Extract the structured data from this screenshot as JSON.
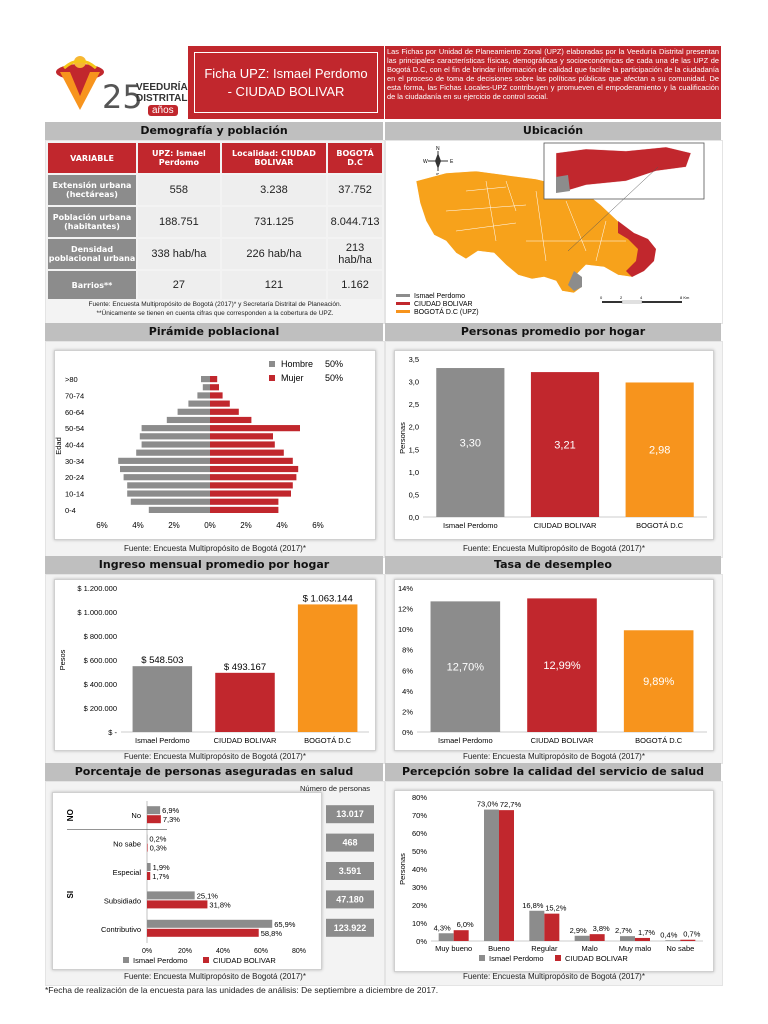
{
  "header": {
    "logo_number": "25",
    "logo_text_line1": "VEEDURÍA",
    "logo_text_line2": "DISTRITAL",
    "logo_text_line3": "años",
    "title_line1": "Ficha UPZ: Ismael Perdomo",
    "title_line2": "- CIUDAD BOLIVAR",
    "intro": "Las Fichas por Unidad de Planeamiento Zonal (UPZ) elaboradas por la Veeduría Distrital presentan las principales características físicas, demográficas y socioeconómicas de cada una de las UPZ de Bogotá D.C, con el fin de brindar información de calidad que facilite la participación de la ciudadanía en el proceso de toma de decisiones sobre las políticas públicas que afectan a su comunidad. De esta forma, las Fichas Locales-UPZ contribuyen y promueven el empoderamiento y la cualificación de la ciudadanía en su ejercicio de control social.",
    "colors": {
      "red": "#c1272d",
      "grey": "#8c8c8c",
      "orange": "#f7941d"
    }
  },
  "demografia": {
    "title": "Demografía y población",
    "col_variable": "VARIABLE",
    "col_upz": "UPZ: Ismael Perdomo",
    "col_localidad": "Localidad: CIUDAD BOLIVAR",
    "col_bogota": "BOGOTÁ D.C",
    "rows": [
      {
        "label": "Extensión urbana (hectáreas)",
        "upz": "558",
        "localidad": "3.238",
        "bogota": "37.752"
      },
      {
        "label": "Población urbana (habitantes)",
        "upz": "188.751",
        "localidad": "731.125",
        "bogota": "8.044.713"
      },
      {
        "label": "Densidad poblacional urbana",
        "upz": "338 hab/ha",
        "localidad": "226 hab/ha",
        "bogota": "213 hab/ha"
      },
      {
        "label": "Barrios**",
        "upz": "27",
        "localidad": "121",
        "bogota": "1.162"
      }
    ],
    "source_line1": "Fuente: Encuesta Multipropósito de Bogotá (2017)* y Secretaría Distrital de Planeación.",
    "source_line2": "**Únicamente se tienen en cuenta cifras que corresponden a la cobertura de UPZ."
  },
  "ubicacion": {
    "title": "Ubicación",
    "legend": [
      "Ismael Perdomo",
      "CIUDAD BOLIVAR",
      "BOGOTÁ D.C (UPZ)"
    ],
    "scale_labels": [
      "0",
      "2",
      "4",
      "8 Km"
    ],
    "compass": {
      "n": "N",
      "w": "W",
      "e": "E",
      "s": "S"
    }
  },
  "piramide": {
    "title": "Pirámide poblacional",
    "legend": [
      {
        "label": "Hombre",
        "value": "50%"
      },
      {
        "label": "Mujer",
        "value": "50%"
      }
    ],
    "ylabel": "Edad",
    "source": "Fuente: Encuesta Multipropósito de Bogotá (2017)*"
  },
  "hogar": {
    "title": "Personas promedio por hogar",
    "source": "Fuente: Encuesta Multipropósito de Bogotá (2017)*"
  },
  "ingreso": {
    "title": "Ingreso mensual promedio por hogar",
    "source": "Fuente: Encuesta Multipropósito de Bogotá (2017)*"
  },
  "desempleo": {
    "title": "Tasa de desempleo",
    "source": "Fuente: Encuesta Multipropósito de Bogotá (2017)*"
  },
  "salud": {
    "title": "Porcentaje de personas aseguradas en salud",
    "numero_header": "Número de personas",
    "source": "Fuente: Encuesta Multipropósito de Bogotá (2017)*"
  },
  "percepcion": {
    "title": "Percepción sobre la calidad del servicio de salud",
    "source": "Fuente: Encuesta Multipropósito de Bogotá (2017)*"
  },
  "footnote": "*Fecha de realización de la encuesta para las unidades de análisis: De septiembre a diciembre de 2017.",
  "chart_data": [
    {
      "id": "piramide",
      "type": "bar",
      "orientation": "horizontal",
      "title": "Pirámide poblacional",
      "ylabel": "Edad",
      "categories": [
        "0-4",
        "5-9",
        "10-14",
        "15-19",
        "20-24",
        "25-29",
        "30-34",
        "35-39",
        "40-44",
        "45-49",
        "50-54",
        "55-59",
        "60-64",
        "65-69",
        "70-74",
        "75-79",
        ">80"
      ],
      "category_tick_labels": [
        "0-4",
        "10-14",
        "20-24",
        "30-34",
        "40-44",
        "50-54",
        "60-64",
        "70-74",
        ">80"
      ],
      "series": [
        {
          "name": "Hombre",
          "values": [
            3.4,
            4.4,
            4.6,
            4.6,
            4.8,
            5.0,
            5.1,
            4.1,
            3.8,
            3.9,
            3.8,
            2.4,
            1.8,
            1.2,
            0.7,
            0.4,
            0.5
          ]
        },
        {
          "name": "Mujer",
          "values": [
            3.8,
            3.8,
            4.5,
            4.6,
            4.8,
            4.9,
            4.6,
            4.1,
            3.6,
            3.5,
            5.0,
            2.3,
            1.6,
            1.1,
            0.7,
            0.5,
            0.4
          ]
        }
      ],
      "xticks": [
        "6%",
        "4%",
        "2%",
        "0%",
        "2%",
        "4%",
        "6%"
      ],
      "xlim": [
        -6,
        6
      ]
    },
    {
      "id": "hogar",
      "type": "bar",
      "title": "Personas promedio por hogar",
      "ylabel": "Personas",
      "categories": [
        "Ismael Perdomo",
        "CIUDAD BOLIVAR",
        "BOGOTÁ D.C"
      ],
      "values": [
        3.3,
        3.21,
        2.98
      ],
      "labels": [
        "3,30",
        "3,21",
        "2,98"
      ],
      "ylim": [
        0,
        3.5
      ],
      "yticks": [
        "0,0",
        "0,5",
        "1,0",
        "1,5",
        "2,0",
        "2,5",
        "3,0",
        "3,5"
      ]
    },
    {
      "id": "ingreso",
      "type": "bar",
      "title": "Ingreso mensual promedio por hogar",
      "ylabel": "Pesos",
      "categories": [
        "Ismael Perdomo",
        "CIUDAD BOLIVAR",
        "BOGOTÁ D.C"
      ],
      "values": [
        548503,
        493167,
        1063144
      ],
      "labels": [
        "$ 548.503",
        "$ 493.167",
        "$ 1.063.144"
      ],
      "ylim": [
        0,
        1200000
      ],
      "yticks": [
        "$ -",
        "$ 200.000",
        "$ 400.000",
        "$ 600.000",
        "$ 800.000",
        "$ 1.000.000",
        "$ 1.200.000"
      ]
    },
    {
      "id": "desempleo",
      "type": "bar",
      "title": "Tasa de desempleo",
      "categories": [
        "Ismael Perdomo",
        "CIUDAD BOLIVAR",
        "BOGOTÁ D.C"
      ],
      "values": [
        12.7,
        12.99,
        9.89
      ],
      "labels": [
        "12,70%",
        "12,99%",
        "9,89%"
      ],
      "ylim": [
        0,
        14
      ],
      "yticks": [
        "0%",
        "2%",
        "4%",
        "6%",
        "8%",
        "10%",
        "12%",
        "14%"
      ]
    },
    {
      "id": "salud",
      "type": "bar",
      "orientation": "horizontal",
      "title": "Porcentaje de personas aseguradas en salud",
      "categories": [
        "No",
        "No sabe",
        "Especial",
        "Subsidiado",
        "Contributivo"
      ],
      "groups": {
        "NO": [
          "No"
        ],
        "SI": [
          "Especial",
          "Subsidiado",
          "Contributivo"
        ]
      },
      "series": [
        {
          "name": "Ismael Perdomo",
          "values": [
            6.9,
            0.2,
            1.9,
            25.1,
            65.9
          ],
          "labels": [
            "6,9%",
            "0,2%",
            "1,9%",
            "25,1%",
            "65,9%"
          ]
        },
        {
          "name": "CIUDAD BOLIVAR",
          "values": [
            7.3,
            0.3,
            1.7,
            31.8,
            58.8
          ],
          "labels": [
            "7,3%",
            "0,3%",
            "1,7%",
            "31,8%",
            "58,8%"
          ]
        }
      ],
      "numero_personas": [
        "13.017",
        "468",
        "3.591",
        "47.180",
        "123.922"
      ],
      "xlim": [
        0,
        100
      ],
      "xticks": [
        "0%",
        "20%",
        "40%",
        "60%",
        "80%",
        "100%"
      ]
    },
    {
      "id": "percepcion",
      "type": "bar",
      "title": "Percepción sobre la calidad del servicio de salud",
      "ylabel": "Personas",
      "categories": [
        "Muy bueno",
        "Bueno",
        "Regular",
        "Malo",
        "Muy malo",
        "No sabe"
      ],
      "series": [
        {
          "name": "Ismael Perdomo",
          "values": [
            4.3,
            73.0,
            16.8,
            2.9,
            2.7,
            0.4
          ],
          "labels": [
            "4,3%",
            "73,0%",
            "16,8%",
            "2,9%",
            "2,7%",
            "0,4%"
          ]
        },
        {
          "name": "CIUDAD BOLIVAR",
          "values": [
            6.0,
            72.7,
            15.2,
            3.8,
            1.7,
            0.7
          ],
          "labels": [
            "6,0%",
            "72,7%",
            "15,2%",
            "3,8%",
            "1,7%",
            "0,7%"
          ]
        }
      ],
      "ylim": [
        0,
        80
      ],
      "yticks": [
        "0%",
        "10%",
        "20%",
        "30%",
        "40%",
        "50%",
        "60%",
        "70%",
        "80%"
      ]
    }
  ]
}
